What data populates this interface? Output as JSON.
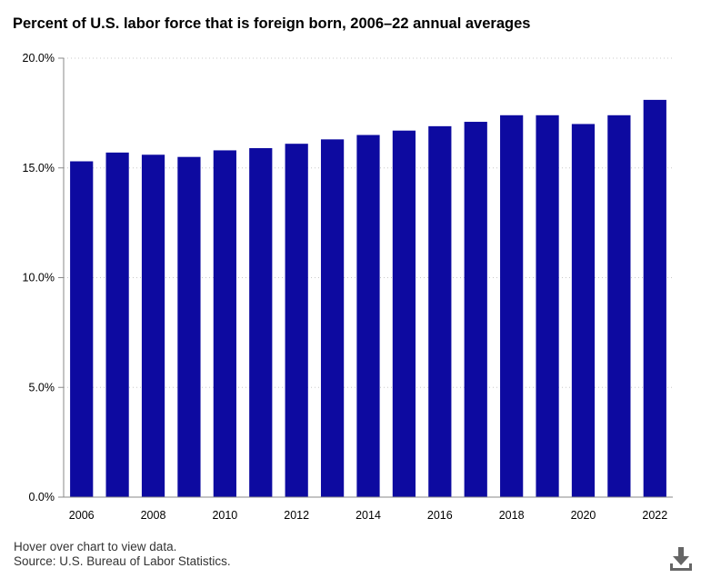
{
  "page_title": "Percent of U.S. labor force that is foreign born, 2006–22 annual averages",
  "footer": {
    "hover_note": "Hover over chart to view data.",
    "source": "Source: U.S. Bureau of Labor Statistics."
  },
  "icons": {
    "download": "download-icon"
  },
  "colors": {
    "bar": "#0d0aa0",
    "grid": "#c8c8c8",
    "axis": "#888888"
  },
  "chart_data": {
    "type": "bar",
    "title": "Percent of U.S. labor force that is foreign born, 2006–22 annual averages",
    "xlabel": "",
    "ylabel": "",
    "categories": [
      "2006",
      "2007",
      "2008",
      "2009",
      "2010",
      "2011",
      "2012",
      "2013",
      "2014",
      "2015",
      "2016",
      "2017",
      "2018",
      "2019",
      "2020",
      "2021",
      "2022"
    ],
    "values": [
      15.3,
      15.7,
      15.6,
      15.5,
      15.8,
      15.9,
      16.1,
      16.3,
      16.5,
      16.7,
      16.9,
      17.1,
      17.4,
      17.4,
      17.0,
      17.4,
      18.1
    ],
    "x_tick_labels": [
      "2006",
      "2008",
      "2010",
      "2012",
      "2014",
      "2016",
      "2018",
      "2020",
      "2022"
    ],
    "y_ticks": [
      0,
      5,
      10,
      15,
      20
    ],
    "y_tick_labels": [
      "0.0%",
      "5.0%",
      "10.0%",
      "15.0%",
      "20.0%"
    ],
    "ylim": [
      0,
      20
    ],
    "grid": true,
    "legend": "none"
  }
}
